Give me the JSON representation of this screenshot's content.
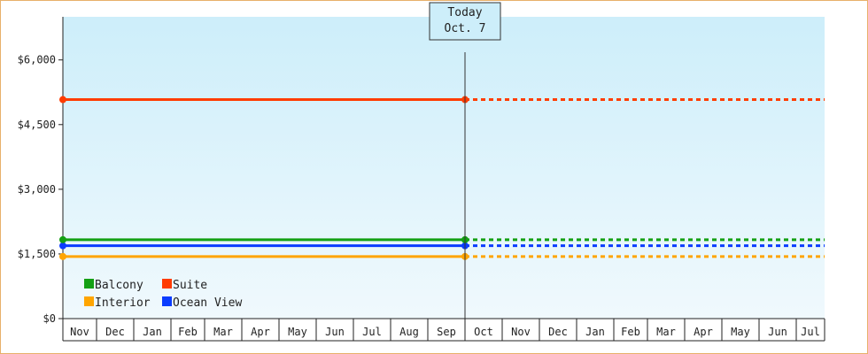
{
  "chart_data": {
    "type": "line",
    "title": "",
    "xlabel": "",
    "ylabel": "",
    "ylim": [
      0,
      7000
    ],
    "yticks": [
      0,
      1500,
      3000,
      4500,
      6000
    ],
    "ytick_labels": [
      "$0",
      "$1,500",
      "$3,000",
      "$4,500",
      "$6,000"
    ],
    "x_tick_labels": [
      "Nov",
      "Dec",
      "Jan",
      "Feb",
      "Mar",
      "Apr",
      "May",
      "Jun",
      "Jul",
      "Aug",
      "Sep",
      "Oct",
      "Nov",
      "Dec",
      "Jan",
      "Feb",
      "Mar",
      "Apr",
      "May",
      "Jun",
      "Jul"
    ],
    "today_index": 11,
    "today_label_line1": "Today",
    "today_label_line2": "Oct. 7",
    "legend_position": "bottom-left",
    "series": [
      {
        "name": "Balcony",
        "color": "#14a014",
        "values": [
          1830,
          1830
        ],
        "projected": 1830
      },
      {
        "name": "Suite",
        "color": "#ff3c00",
        "values": [
          5080,
          5080
        ],
        "projected": 5080
      },
      {
        "name": "Interior",
        "color": "#ffa500",
        "values": [
          1440,
          1440
        ],
        "projected": 1440
      },
      {
        "name": "Ocean View",
        "color": "#0a3cff",
        "values": [
          1690,
          1690
        ],
        "projected": 1690
      }
    ],
    "background_top": "#cdeefa",
    "background_bottom": "#f0f9fd"
  }
}
